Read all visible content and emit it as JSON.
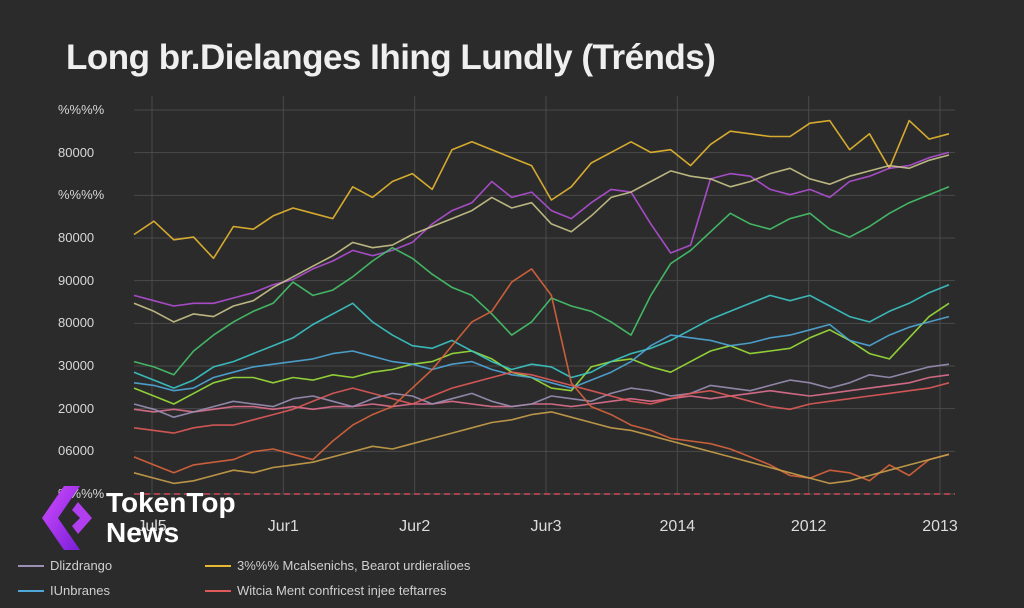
{
  "chart_data": {
    "type": "line",
    "title": "Long br.Dielanges Ihing Lundly (Trénds)",
    "x_labels": [
      "Jul5",
      "Jur1",
      "Jur2",
      "Jur3",
      "2014",
      "2012",
      "2013"
    ],
    "y_labels": [
      "%%%%",
      "80000",
      "%%%%",
      "80000",
      "90000",
      "80000",
      "30000",
      "20000",
      "06000",
      "%%%%"
    ],
    "grid": true,
    "legend": {
      "placement": "bottom-left",
      "entries": [
        {
          "label": "Dlizdrango",
          "color": "#9a8fb5"
        },
        {
          "label": "3%%% Mcalsenichs, Bearot urdieralioes",
          "color": "#e8b830"
        },
        {
          "label": "IUnbranes",
          "color": "#4fa8d8"
        },
        {
          "label": "Witcia Ment confricest injee teftarres",
          "color": "#e05a5a"
        }
      ]
    },
    "series": [
      {
        "color": "#e8b830",
        "values": [
          78,
          83,
          76,
          77,
          69,
          81,
          80,
          85,
          88,
          86,
          84,
          96,
          92,
          98,
          101,
          95,
          110,
          113,
          110,
          107,
          104,
          91,
          96,
          105,
          109,
          113,
          109,
          110,
          104,
          112,
          117,
          116,
          115,
          115,
          120,
          121,
          110,
          116,
          103,
          121,
          114,
          116
        ]
      },
      {
        "color": "#b24fd6",
        "values": [
          55,
          53,
          51,
          52,
          52,
          54,
          56,
          59,
          61,
          65,
          68,
          72,
          70,
          72,
          75,
          82,
          87,
          90,
          98,
          92,
          94,
          87,
          84,
          90,
          95,
          94,
          82,
          71,
          74,
          99,
          101,
          100,
          95,
          93,
          95,
          92,
          98,
          100,
          103,
          104,
          107,
          109
        ]
      },
      {
        "color": "#c9c489",
        "values": [
          52,
          49,
          45,
          48,
          47,
          51,
          53,
          58,
          62,
          66,
          70,
          75,
          73,
          74,
          78,
          81,
          84,
          87,
          92,
          88,
          90,
          82,
          79,
          85,
          92,
          94,
          98,
          102,
          100,
          99,
          96,
          98,
          101,
          103,
          99,
          97,
          100,
          102,
          104,
          103,
          106,
          108
        ]
      },
      {
        "color": "#46c46a",
        "values": [
          30,
          28,
          25,
          34,
          40,
          45,
          49,
          52,
          60,
          55,
          57,
          62,
          68,
          73,
          69,
          63,
          58,
          55,
          48,
          40,
          45,
          54,
          51,
          49,
          45,
          40,
          55,
          67,
          72,
          79,
          86,
          82,
          80,
          84,
          86,
          80,
          77,
          81,
          86,
          90,
          93,
          96
        ]
      },
      {
        "color": "#9be03a",
        "values": [
          20,
          17,
          14,
          18,
          22,
          24,
          24,
          22,
          24,
          23,
          25,
          24,
          26,
          27,
          29,
          30,
          33,
          34,
          31,
          26,
          24,
          20,
          19,
          28,
          30,
          31,
          28,
          26,
          30,
          34,
          36,
          33,
          34,
          35,
          39,
          42,
          38,
          33,
          31,
          39,
          47,
          52
        ]
      },
      {
        "color": "#3cc7c7",
        "values": [
          26,
          23,
          20,
          23,
          28,
          30,
          33,
          36,
          39,
          44,
          48,
          52,
          45,
          40,
          36,
          35,
          38,
          34,
          30,
          27,
          29,
          28,
          24,
          26,
          30,
          33,
          35,
          38,
          42,
          46,
          49,
          52,
          55,
          53,
          55,
          51,
          47,
          45,
          49,
          52,
          56,
          59
        ]
      },
      {
        "color": "#4fa8d8",
        "values": [
          22,
          21,
          19,
          20,
          24,
          26,
          28,
          29,
          30,
          31,
          33,
          34,
          32,
          30,
          29,
          27,
          29,
          30,
          27,
          25,
          24,
          22,
          20,
          23,
          26,
          30,
          36,
          40,
          39,
          38,
          36,
          37,
          39,
          40,
          42,
          44,
          38,
          36,
          40,
          43,
          45,
          47
        ]
      },
      {
        "color": "#e0708f",
        "values": [
          12,
          11,
          12,
          11,
          12,
          13,
          13,
          12,
          13,
          12,
          13,
          13,
          14,
          13,
          14,
          14,
          15,
          14,
          13,
          13,
          14,
          14,
          13,
          14,
          15,
          16,
          15,
          16,
          17,
          16,
          17,
          18,
          19,
          18,
          17,
          18,
          19,
          20,
          21,
          22,
          24,
          25
        ]
      },
      {
        "color": "#9a8fb5",
        "values": [
          14,
          12,
          9,
          11,
          13,
          15,
          14,
          13,
          16,
          17,
          15,
          13,
          16,
          18,
          17,
          14,
          16,
          18,
          15,
          13,
          14,
          17,
          16,
          15,
          18,
          20,
          19,
          17,
          18,
          21,
          20,
          19,
          21,
          23,
          22,
          20,
          22,
          25,
          24,
          26,
          28,
          29
        ]
      },
      {
        "color": "#d9643c",
        "values": [
          -6,
          -9,
          -12,
          -9,
          -8,
          -7,
          -4,
          -3,
          -5,
          -7,
          0,
          6,
          10,
          13,
          20,
          27,
          36,
          45,
          49,
          60,
          65,
          55,
          22,
          13,
          10,
          6,
          4,
          1,
          0,
          -1,
          -3,
          -6,
          -9,
          -13,
          -14,
          -11,
          -12,
          -15,
          -9,
          -13,
          -7,
          -5
        ]
      },
      {
        "color": "#c9a04a",
        "values": [
          -12,
          -14,
          -16,
          -15,
          -13,
          -11,
          -12,
          -10,
          -9,
          -8,
          -6,
          -4,
          -2,
          -3,
          -1,
          1,
          3,
          5,
          7,
          8,
          10,
          11,
          9,
          7,
          5,
          4,
          2,
          0,
          -2,
          -4,
          -6,
          -8,
          -10,
          -12,
          -14,
          -16,
          -15,
          -13,
          -11,
          -9,
          -7,
          -5
        ]
      },
      {
        "color": "#e05a5a",
        "values": [
          5,
          4,
          3,
          5,
          6,
          6,
          8,
          10,
          12,
          15,
          18,
          20,
          18,
          16,
          14,
          17,
          20,
          22,
          24,
          26,
          25,
          23,
          21,
          19,
          17,
          15,
          14,
          16,
          18,
          19,
          17,
          15,
          13,
          12,
          14,
          15,
          16,
          17,
          18,
          19,
          20,
          22
        ]
      }
    ]
  },
  "watermark": {
    "line1": "TokenTop",
    "line2": "News"
  }
}
